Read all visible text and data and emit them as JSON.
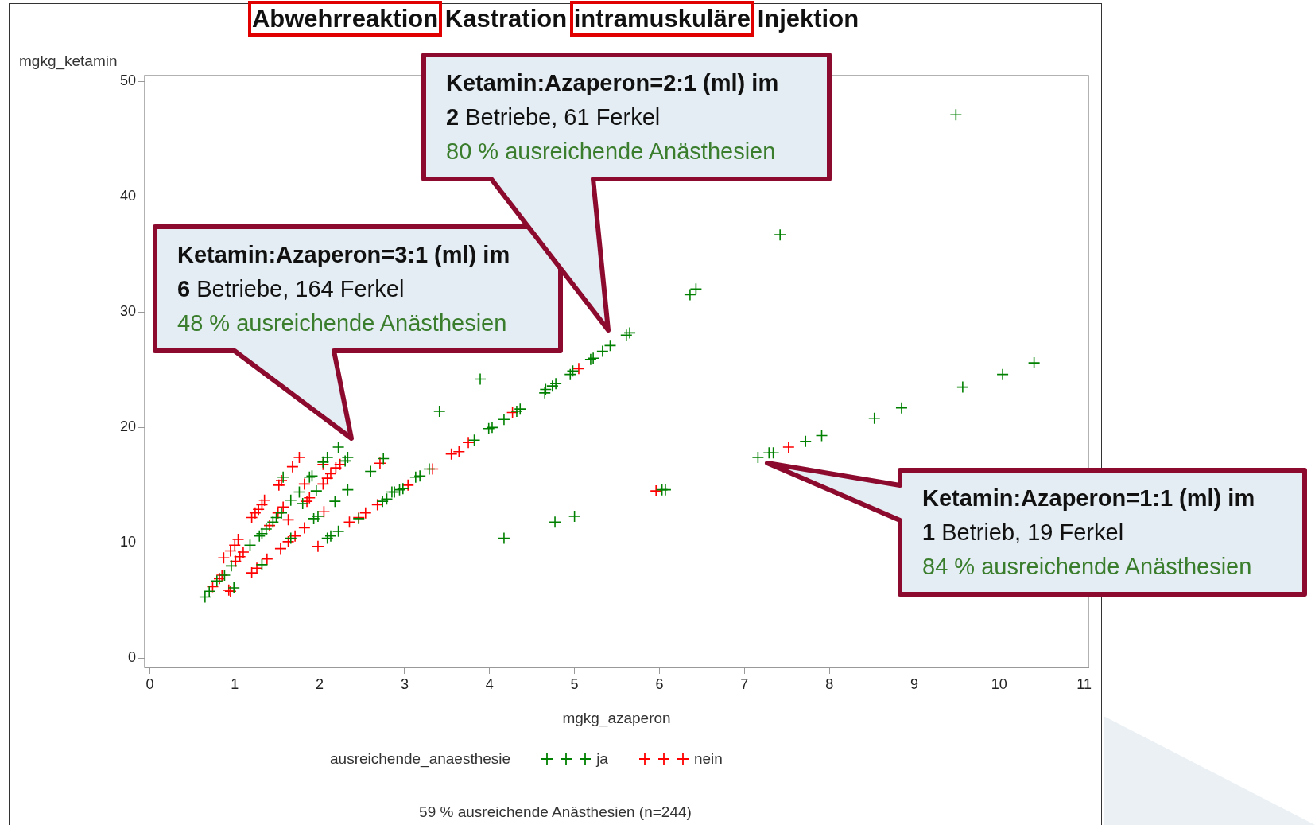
{
  "chart_data": {
    "type": "scatter",
    "title": "Abwehrreaktion Kastration intramuskuläre Injektion",
    "xlabel": "mgkg_azaperon",
    "ylabel": "mgkg_ketamin",
    "legend_title": "ausreichende_anaesthesie",
    "legend": "bottom",
    "marker": "cross",
    "xlim": [
      -0.06,
      11.05
    ],
    "ylim": [
      -0.8,
      50.5
    ],
    "xticks": [
      0,
      1,
      2,
      3,
      4,
      5,
      6,
      7,
      8,
      9,
      10,
      11
    ],
    "yticks": [
      0,
      10,
      20,
      30,
      40,
      50
    ],
    "series": [
      {
        "name": "ja",
        "color": "#008000",
        "x": [
          0.65,
          0.7,
          0.99,
          0.96,
          0.79,
          0.88,
          1.18,
          1.29,
          1.32,
          1.45,
          1.49,
          1.66,
          1.76,
          1.88,
          1.91,
          1.57,
          2.09,
          2.04,
          2.22,
          2.33,
          2.3,
          1.96,
          1.8,
          2.18,
          2.33,
          2.6,
          2.75,
          1.93,
          1.98,
          1.66,
          2.09,
          2.13,
          2.22,
          1.32,
          2.46,
          2.74,
          2.79,
          2.88,
          2.94,
          2.98,
          3.13,
          3.18,
          3.29,
          3.82,
          3.99,
          4.03,
          4.17,
          4.32,
          4.36,
          4.65,
          4.66,
          4.74,
          4.78,
          4.95,
          4.98,
          5.19,
          5.22,
          5.33,
          5.42,
          5.61,
          5.65,
          3.89,
          3.41,
          4.17,
          4.77,
          5.0,
          9.49,
          7.42,
          6.36,
          6.43,
          10.41,
          10.04,
          9.57,
          8.85,
          8.53,
          7.91,
          7.72,
          7.34,
          7.29,
          7.16,
          6.07,
          6.03,
          2.85,
          1.37,
          1.55
        ],
        "values": [
          5.3,
          5.8,
          6.1,
          8.0,
          6.7,
          7.2,
          9.8,
          10.6,
          10.8,
          11.8,
          12.2,
          13.7,
          14.4,
          15.7,
          15.8,
          15.7,
          17.4,
          17.0,
          18.3,
          17.4,
          17.1,
          14.5,
          13.4,
          13.6,
          14.6,
          16.2,
          17.3,
          12.1,
          12.3,
          10.4,
          10.4,
          10.6,
          11.0,
          8.1,
          12.1,
          13.6,
          13.8,
          14.4,
          14.6,
          14.7,
          15.7,
          15.8,
          16.4,
          18.9,
          19.9,
          20.0,
          20.7,
          21.4,
          21.6,
          23.0,
          23.3,
          23.6,
          23.8,
          24.6,
          24.9,
          25.9,
          26.0,
          26.6,
          27.1,
          28.0,
          28.2,
          24.2,
          21.4,
          10.4,
          11.8,
          12.3,
          47.1,
          36.7,
          31.5,
          32.0,
          25.6,
          24.6,
          23.5,
          21.7,
          20.8,
          19.3,
          18.8,
          17.8,
          17.8,
          17.4,
          14.6,
          14.6,
          14.4,
          11.2,
          12.6
        ]
      },
      {
        "name": "nein",
        "color": "#ff0000",
        "x": [
          1.76,
          1.68,
          1.55,
          1.52,
          1.35,
          1.32,
          1.28,
          1.24,
          1.2,
          1.04,
          1.0,
          0.95,
          0.87,
          1.1,
          1.06,
          1.01,
          0.85,
          0.82,
          0.74,
          0.95,
          1.2,
          1.26,
          1.38,
          1.54,
          1.63,
          1.41,
          1.51,
          1.57,
          1.63,
          1.82,
          1.85,
          1.88,
          2.04,
          2.09,
          2.13,
          2.19,
          2.24,
          2.04,
          1.82,
          2.05,
          1.71,
          1.98,
          2.35,
          2.54,
          2.46,
          2.68,
          3.04,
          2.71,
          3.33,
          3.55,
          3.64,
          3.75,
          4.27,
          5.05,
          7.52,
          5.96,
          0.93
        ],
        "values": [
          17.4,
          16.6,
          15.4,
          15.0,
          13.7,
          13.3,
          12.9,
          12.6,
          12.2,
          10.3,
          9.8,
          9.3,
          8.7,
          9.2,
          8.8,
          8.4,
          7.2,
          6.9,
          6.2,
          5.8,
          7.4,
          7.8,
          8.6,
          9.5,
          10.1,
          11.5,
          12.6,
          13.1,
          12.0,
          15.1,
          13.6,
          13.9,
          15.1,
          15.6,
          16.0,
          16.5,
          16.8,
          16.8,
          11.3,
          12.7,
          10.6,
          9.7,
          11.8,
          12.6,
          12.2,
          13.3,
          15.0,
          16.9,
          16.4,
          17.7,
          17.9,
          18.7,
          21.3,
          25.1,
          18.3,
          14.5,
          5.9
        ]
      }
    ],
    "annotations": [
      "Ketamin:Azaperon=3:1 (ml) im\n6 Betriebe, 164 Ferkel\n48 % ausreichende Anästhesien",
      "Ketamin:Azaperon=2:1 (ml) im\n2 Betriebe, 61 Ferkel\n80 % ausreichende Anästhesien",
      "Ketamin:Azaperon=1:1 (ml) im\n1 Betrieb, 19 Ferkel\n84 % ausreichende Anästhesien",
      "59 % ausreichende Anästhesien (n=244)"
    ]
  }
}
